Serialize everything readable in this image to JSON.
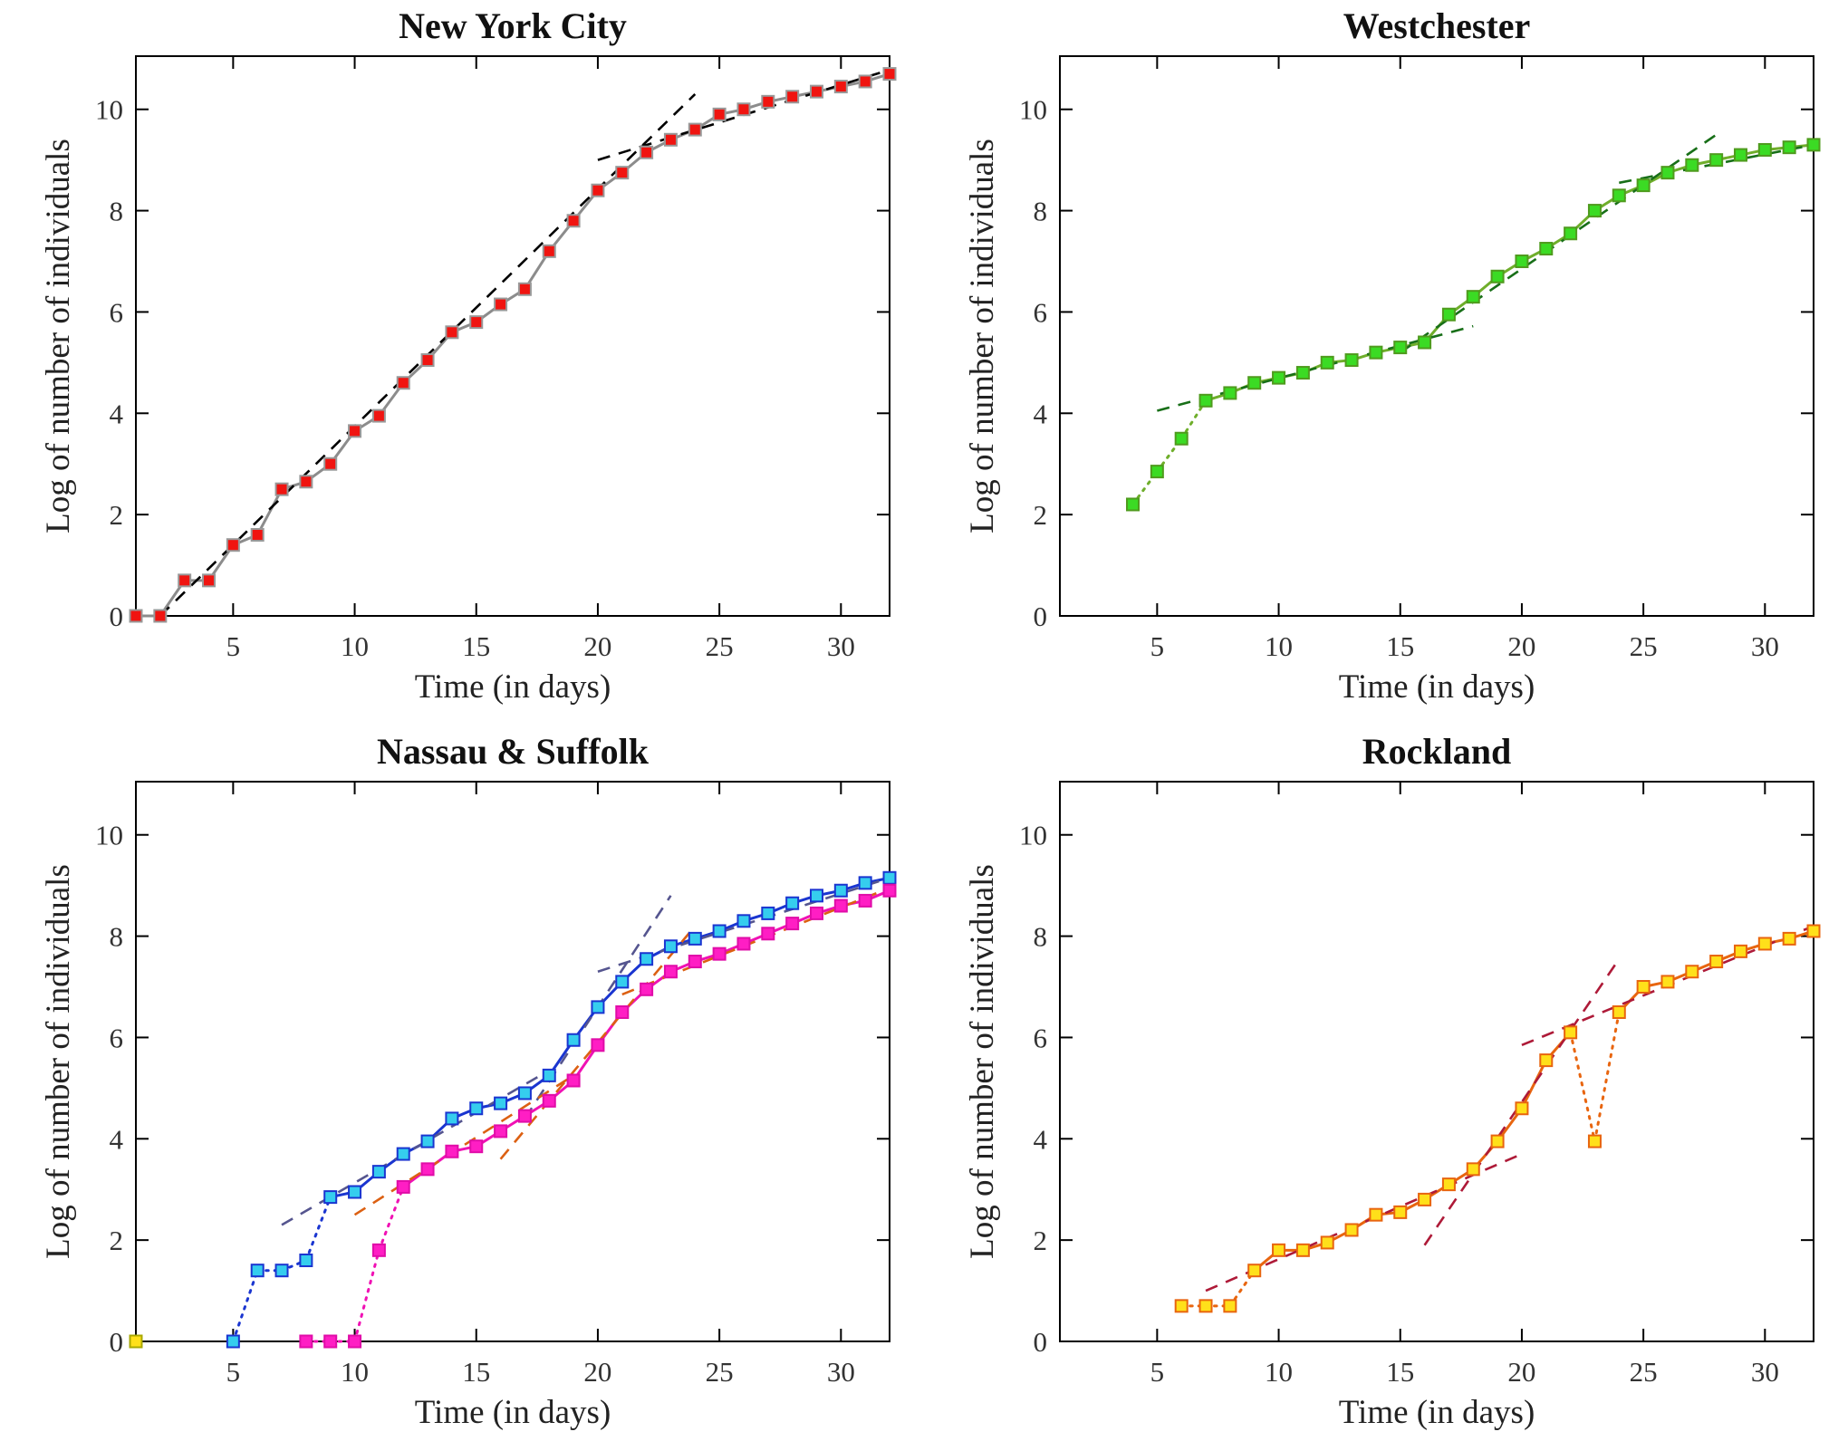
{
  "page": {
    "background": "#ffffff"
  },
  "chart_data": [
    {
      "id": "new-york-city",
      "type": "line",
      "title": "New York City",
      "xlabel": "Time (in days)",
      "ylabel": "Log of number of individuals",
      "xlim": [
        1,
        32
      ],
      "ylim": [
        0,
        11.05
      ],
      "xticks": [
        5,
        10,
        15,
        20,
        25,
        30
      ],
      "yticks": [
        0,
        2,
        4,
        6,
        8,
        10
      ],
      "grid": false,
      "legend": "none",
      "series": [
        {
          "id": "red-series",
          "marker": "square",
          "line_color": "#8c8c8c",
          "marker_fill": "#f01410",
          "marker_edge": "#999999",
          "start_day": 1,
          "values": [
            0,
            0,
            0.7,
            0.7,
            1.4,
            1.6,
            2.5,
            2.65,
            3.0,
            3.65,
            3.95,
            4.6,
            5.05,
            5.6,
            5.8,
            6.15,
            6.45,
            7.2,
            7.8,
            8.4,
            8.75,
            9.15,
            9.4,
            9.6,
            9.9,
            10.0,
            10.15,
            10.25,
            10.35,
            10.45,
            10.55,
            10.7
          ],
          "dotted_ranges": []
        }
      ],
      "extra_points": [],
      "trendlines": [
        {
          "x1": 2,
          "y1": 0,
          "x2": 24,
          "y2": 10.3,
          "color": "#000000"
        },
        {
          "x1": 20,
          "y1": 9.0,
          "x2": 32,
          "y2": 10.78,
          "color": "#000000"
        }
      ]
    },
    {
      "id": "westchester",
      "type": "line",
      "title": "Westchester",
      "xlabel": "Time (in days)",
      "ylabel": "Log of number of individuals",
      "xlim": [
        1,
        32
      ],
      "ylim": [
        0,
        11.05
      ],
      "xticks": [
        5,
        10,
        15,
        20,
        25,
        30
      ],
      "yticks": [
        0,
        2,
        4,
        6,
        8,
        10
      ],
      "grid": false,
      "legend": "none",
      "series": [
        {
          "id": "green-series",
          "marker": "square",
          "line_color": "#6fae2b",
          "marker_fill": "#3bdb24",
          "marker_edge": "#4f9b1e",
          "start_day": 4,
          "values": [
            2.2,
            2.85,
            3.5,
            4.25,
            4.4,
            4.6,
            4.7,
            4.8,
            5.0,
            5.05,
            5.2,
            5.3,
            5.4,
            5.95,
            6.3,
            6.7,
            7.0,
            7.25,
            7.55,
            8.0,
            8.3,
            8.5,
            8.75,
            8.9,
            9.0,
            9.1,
            9.2,
            9.25,
            9.3
          ],
          "dotted_ranges": [
            [
              4,
              7
            ]
          ]
        }
      ],
      "extra_points": [],
      "trendlines": [
        {
          "x1": 5,
          "y1": 4.05,
          "x2": 18,
          "y2": 5.72,
          "color": "#186f18"
        },
        {
          "x1": 15,
          "y1": 5.2,
          "x2": 28,
          "y2": 9.5,
          "color": "#186f18"
        },
        {
          "x1": 24,
          "y1": 8.55,
          "x2": 32,
          "y2": 9.3,
          "color": "#186f18"
        }
      ]
    },
    {
      "id": "nassau-suffolk",
      "type": "line",
      "title": "Nassau & Suffolk",
      "xlabel": "Time (in days)",
      "ylabel": "Log of number of individuals",
      "xlim": [
        1,
        32
      ],
      "ylim": [
        0,
        11.05
      ],
      "xticks": [
        5,
        10,
        15,
        20,
        25,
        30
      ],
      "yticks": [
        0,
        2,
        4,
        6,
        8,
        10
      ],
      "grid": false,
      "legend": "none",
      "series": [
        {
          "id": "blue-series",
          "marker": "square",
          "line_color": "#1a35d0",
          "marker_fill": "#35cdee",
          "marker_edge": "#1a35d0",
          "start_day": 5,
          "values": [
            0,
            1.4,
            1.4,
            1.6,
            2.85,
            2.95,
            3.35,
            3.7,
            3.95,
            4.4,
            4.6,
            4.7,
            4.9,
            5.25,
            5.95,
            6.6,
            7.1,
            7.55,
            7.8,
            7.95,
            8.1,
            8.3,
            8.45,
            8.65,
            8.8,
            8.9,
            9.05,
            9.15
          ],
          "dotted_ranges": [
            [
              5,
              9
            ]
          ]
        },
        {
          "id": "magenta-series",
          "marker": "square",
          "line_color": "#f011b4",
          "marker_fill": "#ff1ec4",
          "marker_edge": "#e00da8",
          "start_day": 8,
          "values": [
            0,
            0,
            0,
            1.8,
            3.05,
            3.4,
            3.75,
            3.85,
            4.15,
            4.45,
            4.75,
            5.15,
            5.85,
            6.5,
            6.95,
            7.3,
            7.5,
            7.65,
            7.85,
            8.05,
            8.25,
            8.45,
            8.6,
            8.7,
            8.9
          ],
          "dotted_ranges": [
            [
              8,
              12
            ]
          ]
        }
      ],
      "extra_points": [
        {
          "x": 1,
          "y": 0,
          "fill": "#ffe01a",
          "edge": "#a8a800"
        }
      ],
      "trendlines": [
        {
          "x1": 7,
          "y1": 2.3,
          "x2": 18,
          "y2": 5.35,
          "color": "#55558f"
        },
        {
          "x1": 17,
          "y1": 4.4,
          "x2": 23,
          "y2": 8.8,
          "color": "#55558f"
        },
        {
          "x1": 20,
          "y1": 7.3,
          "x2": 32,
          "y2": 9.15,
          "color": "#55558f"
        },
        {
          "x1": 10,
          "y1": 2.5,
          "x2": 19,
          "y2": 5.25,
          "color": "#dc6012"
        },
        {
          "x1": 16,
          "y1": 3.6,
          "x2": 24,
          "y2": 8.2,
          "color": "#dc6012"
        },
        {
          "x1": 21,
          "y1": 6.85,
          "x2": 32,
          "y2": 8.95,
          "color": "#dc6012"
        }
      ]
    },
    {
      "id": "rockland",
      "type": "line",
      "title": "Rockland",
      "xlabel": "Time (in days)",
      "ylabel": "Log of number of individuals",
      "xlim": [
        1,
        32
      ],
      "ylim": [
        0,
        11.05
      ],
      "xticks": [
        5,
        10,
        15,
        20,
        25,
        30
      ],
      "yticks": [
        0,
        2,
        4,
        6,
        8,
        10
      ],
      "grid": false,
      "legend": "none",
      "series": [
        {
          "id": "orange-series",
          "marker": "square",
          "line_color": "#e8650f",
          "marker_fill": "#ffe01a",
          "marker_edge": "#e8650f",
          "start_day": 6,
          "values": [
            0.7,
            0.7,
            0.7,
            1.4,
            1.8,
            1.8,
            1.95,
            2.2,
            2.5,
            2.55,
            2.8,
            3.1,
            3.4,
            3.95,
            4.6,
            5.55,
            6.1,
            3.95,
            6.5,
            7.0,
            7.1,
            7.3,
            7.5,
            7.7,
            7.85,
            7.95,
            8.1
          ],
          "dotted_ranges": [
            [
              6,
              9
            ],
            [
              22,
              24
            ]
          ]
        }
      ],
      "extra_points": [],
      "trendlines": [
        {
          "x1": 7,
          "y1": 1.0,
          "x2": 20,
          "y2": 3.7,
          "color": "#ae1a38"
        },
        {
          "x1": 16,
          "y1": 1.9,
          "x2": 24,
          "y2": 7.55,
          "color": "#ae1a38"
        },
        {
          "x1": 20,
          "y1": 5.85,
          "x2": 32,
          "y2": 8.2,
          "color": "#ae1a38"
        }
      ]
    }
  ]
}
